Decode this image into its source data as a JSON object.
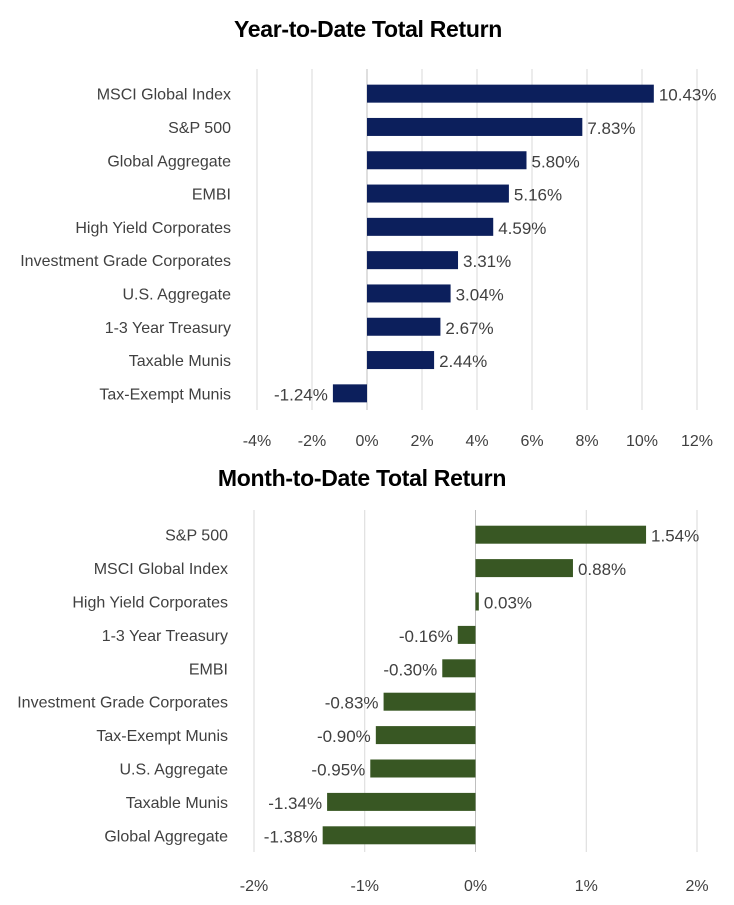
{
  "colors": {
    "ytd_bar": "#0c1f5c",
    "mtd_bar": "#385723",
    "grid": "#d9d9d9",
    "text": "#404040"
  },
  "chart_data": [
    {
      "type": "bar",
      "orientation": "horizontal",
      "title": "Year-to-Date Total Return",
      "categories": [
        "MSCI Global Index",
        "S&P 500",
        "Global Aggregate",
        "EMBI",
        "High Yield Corporates",
        "Investment Grade Corporates",
        "U.S. Aggregate",
        "1-3 Year Treasury",
        "Taxable Munis",
        "Tax-Exempt Munis"
      ],
      "values": [
        10.43,
        7.83,
        5.8,
        5.16,
        4.59,
        3.31,
        3.04,
        2.67,
        2.44,
        -1.24
      ],
      "data_labels": [
        "10.43%",
        "7.83%",
        "5.80%",
        "5.16%",
        "4.59%",
        "3.31%",
        "3.04%",
        "2.67%",
        "2.44%",
        "-1.24%"
      ],
      "xlim": [
        -4,
        12
      ],
      "xticks": [
        -4,
        -2,
        0,
        2,
        4,
        6,
        8,
        10,
        12
      ],
      "xtick_labels": [
        "-4%",
        "-2%",
        "0%",
        "2%",
        "4%",
        "6%",
        "8%",
        "10%",
        "12%"
      ],
      "grid": true,
      "legend": false
    },
    {
      "type": "bar",
      "orientation": "horizontal",
      "title": "Month-to-Date Total Return",
      "categories": [
        "S&P 500",
        "MSCI Global Index",
        "High Yield Corporates",
        "1-3 Year Treasury",
        "EMBI",
        "Investment Grade Corporates",
        "Tax-Exempt Munis",
        "U.S. Aggregate",
        "Taxable Munis",
        "Global Aggregate"
      ],
      "values": [
        1.54,
        0.88,
        0.03,
        -0.16,
        -0.3,
        -0.83,
        -0.9,
        -0.95,
        -1.34,
        -1.38
      ],
      "data_labels": [
        "1.54%",
        "0.88%",
        "0.03%",
        "-0.16%",
        "-0.30%",
        "-0.83%",
        "-0.90%",
        "-0.95%",
        "-1.34%",
        "-1.38%"
      ],
      "xlim": [
        -2,
        2
      ],
      "xticks": [
        -2,
        -1,
        0,
        1,
        2
      ],
      "xtick_labels": [
        "-2%",
        "-1%",
        "0%",
        "1%",
        "2%"
      ],
      "grid": true,
      "legend": false
    }
  ]
}
